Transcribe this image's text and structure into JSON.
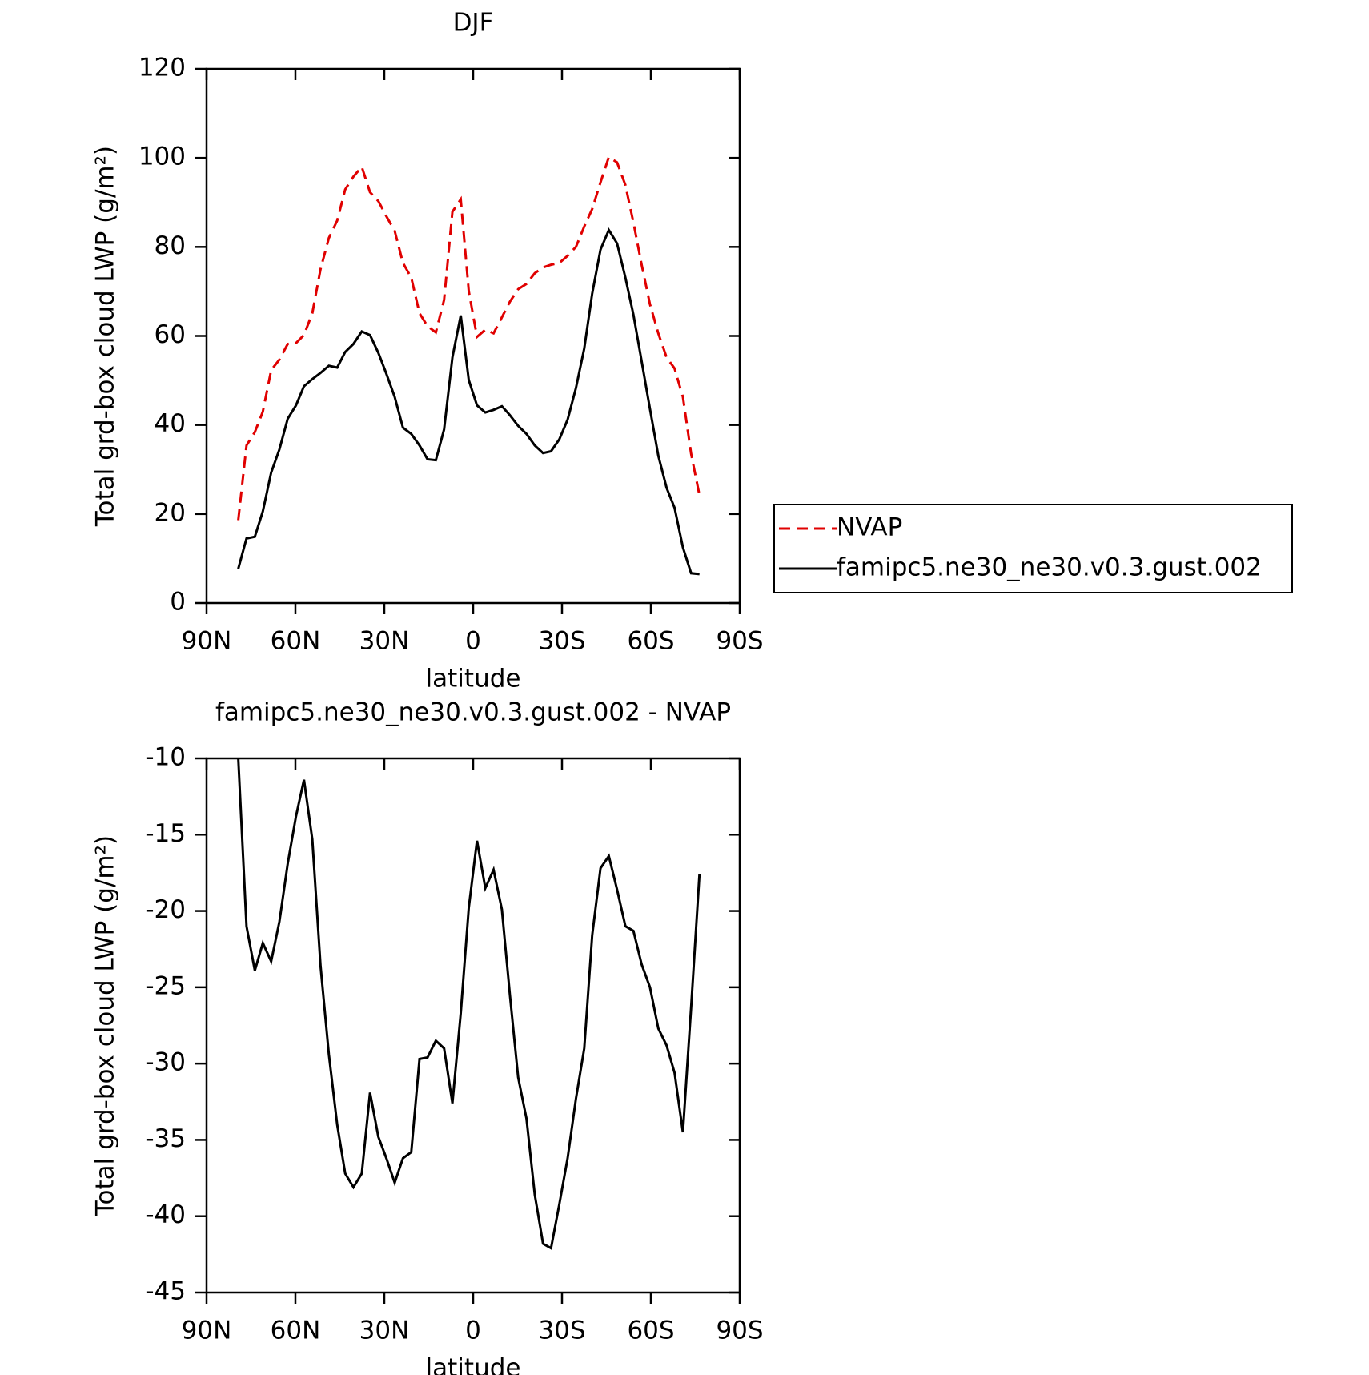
{
  "chart_data": [
    {
      "type": "line",
      "title": "DJF",
      "xlabel": "latitude",
      "ylabel": "Total grd-box cloud LWP (g/m²)",
      "xlim": [
        90,
        -90
      ],
      "xticks": [
        {
          "value": 90,
          "label": "90N"
        },
        {
          "value": 60,
          "label": "60N"
        },
        {
          "value": 30,
          "label": "30N"
        },
        0,
        {
          "value": -30,
          "label": "30S"
        },
        {
          "value": -60,
          "label": "60S"
        },
        {
          "value": -90,
          "label": "90S"
        }
      ],
      "ylim": [
        0,
        120
      ],
      "yticks": [
        0,
        20,
        40,
        60,
        80,
        100,
        120
      ],
      "legend": "right",
      "x": [
        79.3,
        76.5,
        73.7,
        71.0,
        68.2,
        65.4,
        62.6,
        59.8,
        57.1,
        54.3,
        51.5,
        48.7,
        45.9,
        43.2,
        40.4,
        37.6,
        34.8,
        32.0,
        29.3,
        26.5,
        23.7,
        20.9,
        18.1,
        15.4,
        12.6,
        9.8,
        7.0,
        4.2,
        1.5,
        -1.3,
        -4.1,
        -6.9,
        -9.7,
        -12.4,
        -15.2,
        -18.0,
        -20.8,
        -23.6,
        -26.3,
        -29.1,
        -31.9,
        -34.7,
        -37.5,
        -40.2,
        -43.0,
        -45.8,
        -48.6,
        -51.4,
        -54.1,
        -56.9,
        -59.7,
        -62.5,
        -65.3,
        -68.0,
        -70.8,
        -73.6,
        -76.4
      ],
      "series": [
        {
          "name": "NVAP",
          "color": "#e00000",
          "dash": true,
          "values": [
            18.6,
            35.4,
            38.4,
            43.0,
            52.3,
            54.7,
            58.2,
            58.4,
            60.2,
            65.1,
            75.0,
            82.0,
            85.9,
            92.9,
            95.8,
            98.0,
            92.3,
            90.3,
            86.9,
            83.6,
            76.4,
            73.1,
            65.1,
            62.2,
            60.8,
            68.1,
            87.9,
            90.7,
            70.1,
            59.8,
            61.4,
            60.6,
            64.2,
            67.7,
            70.5,
            71.7,
            74.1,
            75.4,
            76.0,
            76.4,
            78.0,
            80.0,
            84.6,
            88.5,
            94.5,
            100.2,
            99.0,
            93.9,
            85.5,
            76.0,
            67.1,
            60.6,
            55.2,
            52.7,
            46.3,
            33.5,
            24.2
          ]
        },
        {
          "name": "famipc5.ne30_ne30.v0.3.gust.002",
          "color": "#000000",
          "dash": false,
          "values": [
            7.7,
            14.5,
            14.9,
            20.6,
            29.3,
            34.5,
            41.4,
            44.4,
            48.7,
            50.3,
            51.7,
            53.3,
            52.9,
            56.4,
            58.2,
            61.0,
            60.2,
            56.2,
            51.5,
            46.3,
            39.4,
            38.0,
            35.4,
            32.3,
            32.1,
            39.0,
            55.2,
            64.6,
            50.1,
            44.4,
            42.8,
            43.4,
            44.2,
            42.2,
            39.8,
            38.0,
            35.4,
            33.7,
            34.1,
            36.8,
            41.2,
            48.3,
            57.2,
            69.5,
            79.4,
            83.8,
            80.8,
            73.1,
            64.8,
            54.3,
            43.6,
            33.1,
            25.9,
            21.4,
            12.5,
            6.7,
            6.5
          ]
        }
      ]
    },
    {
      "type": "line",
      "title": "famipc5.ne30_ne30.v0.3.gust.002 - NVAP",
      "xlabel": "latitude",
      "ylabel": "Total grd-box cloud LWP (g/m²)",
      "xlim": [
        90,
        -90
      ],
      "xticks": [
        {
          "value": 90,
          "label": "90N"
        },
        {
          "value": 60,
          "label": "60N"
        },
        {
          "value": 30,
          "label": "30N"
        },
        0,
        {
          "value": -30,
          "label": "30S"
        },
        {
          "value": -60,
          "label": "60S"
        },
        {
          "value": -90,
          "label": "90S"
        }
      ],
      "ylim": [
        -45,
        -10
      ],
      "yticks": [
        -45,
        -40,
        -35,
        -30,
        -25,
        -20,
        -15,
        -10
      ],
      "x": [
        79.3,
        76.5,
        73.7,
        71.0,
        68.2,
        65.4,
        62.6,
        59.8,
        57.1,
        54.3,
        51.5,
        48.7,
        45.9,
        43.2,
        40.4,
        37.6,
        34.8,
        32.0,
        29.3,
        26.5,
        23.7,
        20.9,
        18.1,
        15.4,
        12.6,
        9.8,
        7.0,
        4.2,
        1.5,
        -1.3,
        -4.1,
        -6.9,
        -9.7,
        -12.4,
        -15.2,
        -18.0,
        -20.8,
        -23.6,
        -26.3,
        -29.1,
        -31.9,
        -34.7,
        -37.5,
        -40.2,
        -43.0,
        -45.8,
        -48.6,
        -51.4,
        -54.1,
        -56.9,
        -59.7,
        -62.5,
        -65.3,
        -68.0,
        -70.8,
        -73.6,
        -76.4
      ],
      "color": "#000000",
      "values": [
        -10.0,
        -21.0,
        -23.9,
        -22.1,
        -23.3,
        -20.7,
        -16.9,
        -13.8,
        -11.4,
        -15.3,
        -23.6,
        -29.4,
        -34.0,
        -37.2,
        -38.1,
        -37.2,
        -31.9,
        -34.8,
        -36.2,
        -37.8,
        -36.2,
        -35.8,
        -29.7,
        -29.6,
        -28.5,
        -29.0,
        -32.6,
        -26.7,
        -19.8,
        -15.4,
        -18.5,
        -17.3,
        -19.9,
        -25.5,
        -30.9,
        -33.6,
        -38.6,
        -41.8,
        -42.1,
        -39.2,
        -36.2,
        -32.3,
        -29.0,
        -21.6,
        -17.2,
        -16.4,
        -18.6,
        -21.0,
        -21.3,
        -23.5,
        -25.0,
        -27.7,
        -28.8,
        -30.6,
        -34.5,
        -26.3,
        -17.6
      ]
    }
  ]
}
